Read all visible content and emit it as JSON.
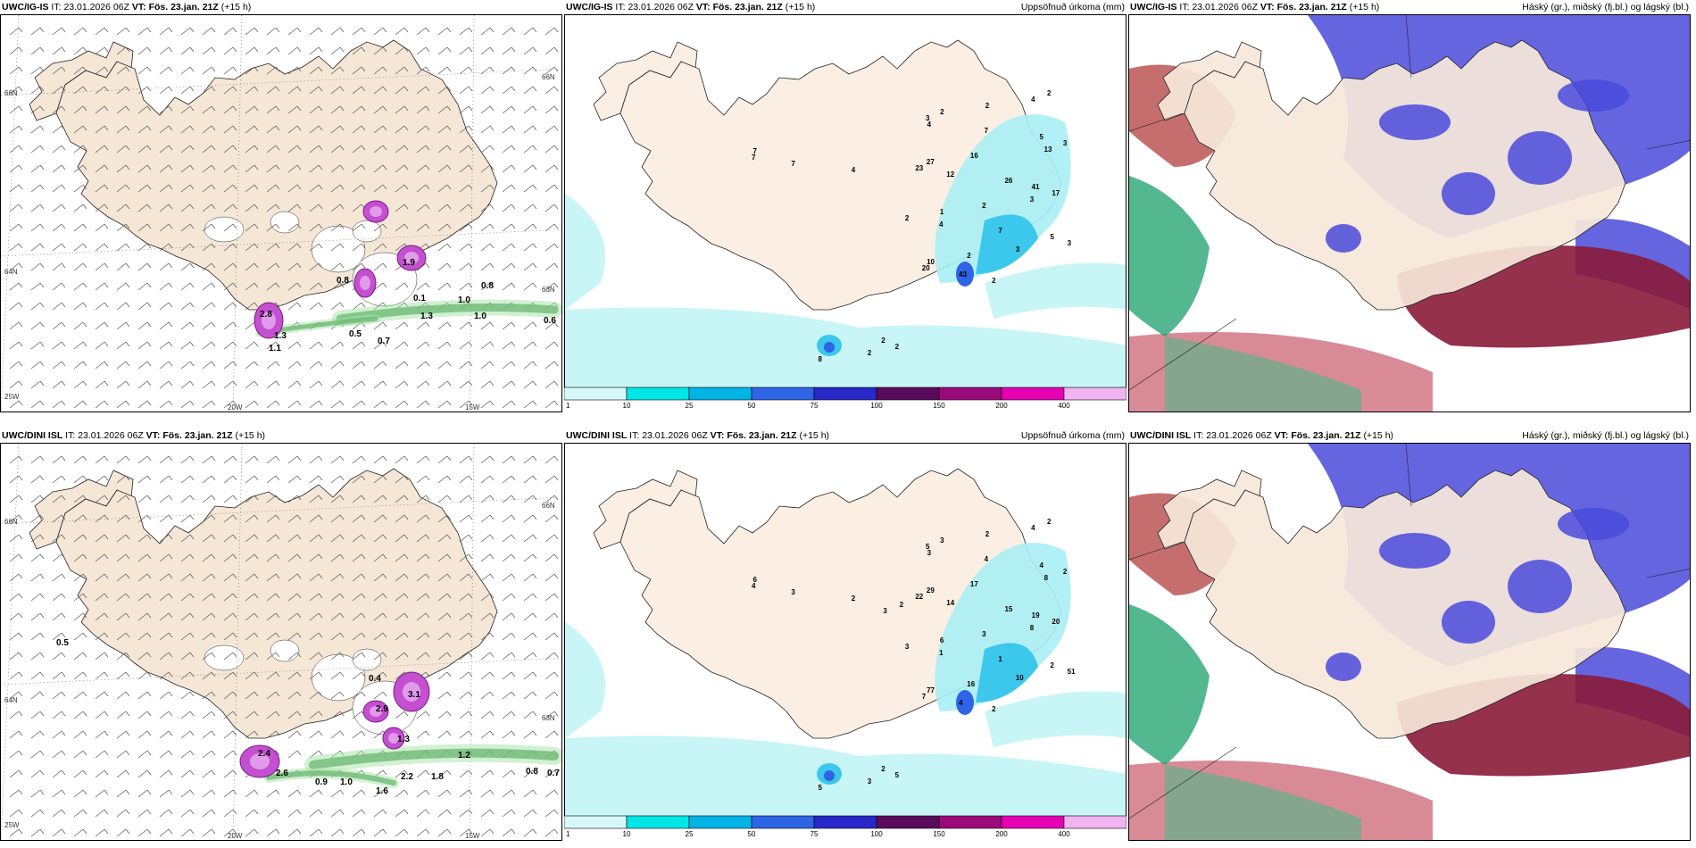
{
  "common": {
    "it_label": "IT:",
    "it_time": "23.01.2026 06Z",
    "vt_label": "VT:",
    "vt_time": "Fös. 23.jan. 21Z",
    "lead": "(+15 h)"
  },
  "rows": [
    {
      "model": "UWC/IG-IS"
    },
    {
      "model": "UWC/DINI ISL"
    }
  ],
  "titles": {
    "precip": "Uppsöfnuð úrkoma (mm)",
    "clouds": "Háský (gr.), miðský (fj.bl.) og lágský (bl.)"
  },
  "colorbar": {
    "labels": [
      "1",
      "10",
      "25",
      "50",
      "75",
      "100",
      "150",
      "200",
      "400"
    ],
    "colors": [
      "#d6f8f8",
      "#00e6e6",
      "#00b4e6",
      "#2e64e6",
      "#2828c8",
      "#5a0a5a",
      "#9b0a7a",
      "#e600b4",
      "#f0b4f0"
    ]
  },
  "coords": {
    "lat_top": "66N",
    "lat_mid": "64N",
    "lat_low": "63N",
    "lon_left": "20W",
    "lon_right": "15W",
    "lon_corner": "25W"
  },
  "wind_panel_values": {
    "top": [
      "0.8",
      "1.0",
      "1.0",
      "0.1",
      "1.3",
      "0.6",
      "2.8",
      "1.9",
      "0.8",
      "1.3",
      "1.1",
      "0.7",
      "0.5"
    ],
    "bottom": [
      "0.5",
      "0.4",
      "2.9",
      "3.1",
      "1.3",
      "0.9",
      "1.0",
      "1.6",
      "1.8",
      "2.2",
      "0.8",
      "0.7",
      "2.6",
      "2.4",
      "1.2"
    ]
  },
  "precip_numbers": {
    "top": [
      "2",
      "4",
      "2",
      "2",
      "3",
      "4",
      "7",
      "5",
      "3",
      "13",
      "16",
      "27",
      "23",
      "12",
      "26",
      "41",
      "17",
      "3",
      "2",
      "1",
      "2",
      "4",
      "7",
      "5",
      "3",
      "3",
      "2",
      "10",
      "20",
      "43",
      "2",
      "2",
      "2",
      "2",
      "8",
      "7",
      "7",
      "7",
      "4"
    ],
    "bottom": [
      "2",
      "4",
      "2",
      "3",
      "5",
      "3",
      "4",
      "4",
      "2",
      "8",
      "17",
      "29",
      "22",
      "14",
      "15",
      "19",
      "20",
      "8",
      "3",
      "6",
      "3",
      "1",
      "1",
      "2",
      "51",
      "10",
      "16",
      "77",
      "7",
      "4",
      "2",
      "2",
      "5",
      "3",
      "5",
      "6",
      "4",
      "3",
      "2",
      "2",
      "3"
    ]
  }
}
